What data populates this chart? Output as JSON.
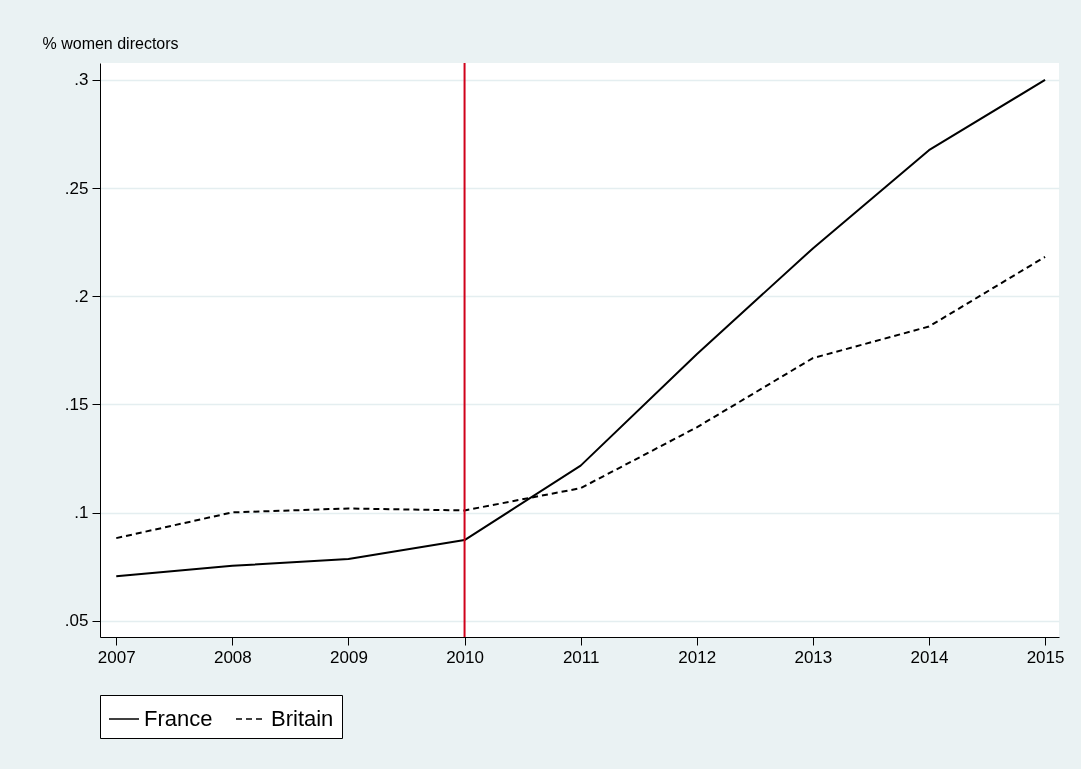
{
  "chart_data": {
    "type": "line",
    "ylabel": "% women directors",
    "x": [
      2007,
      2008,
      2009,
      2010,
      2011,
      2012,
      2013,
      2014,
      2015
    ],
    "series": [
      {
        "name": "France",
        "color": "#000000",
        "line_style": "solid",
        "values": [
          0.0706,
          0.0754,
          0.0786,
          0.0873,
          0.1217,
          0.1732,
          0.2221,
          0.2675,
          0.3
        ]
      },
      {
        "name": "Britain",
        "color": "#000000",
        "line_style": "dashed",
        "values": [
          0.0882,
          0.1001,
          0.1019,
          0.101,
          0.1113,
          0.1394,
          0.1714,
          0.186,
          0.2182
        ]
      }
    ],
    "xlim": [
      2006.86,
      2015.12
    ],
    "xticks": [
      2007,
      2008,
      2009,
      2010,
      2011,
      2012,
      2013,
      2014,
      2015
    ],
    "ylim": [
      0.0425,
      0.3078
    ],
    "yticks": [
      {
        "value": 0.05,
        "label": ".05"
      },
      {
        "value": 0.1,
        "label": ".1"
      },
      {
        "value": 0.15,
        "label": ".15"
      },
      {
        "value": 0.2,
        "label": ".2"
      },
      {
        "value": 0.25,
        "label": ".25"
      },
      {
        "value": 0.3,
        "label": ".3"
      }
    ],
    "ref_lines": [
      {
        "axis": "x",
        "value": 2010,
        "color": "#d0021b"
      }
    ],
    "grid": "y",
    "legend": "bottom"
  }
}
